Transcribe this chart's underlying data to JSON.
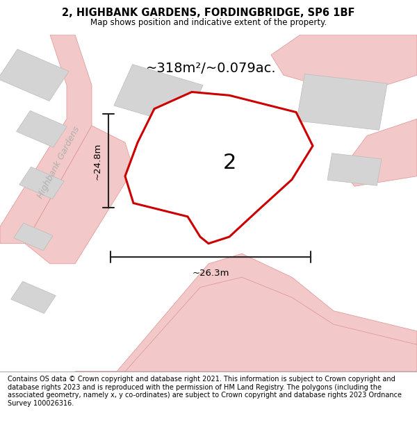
{
  "title": "2, HIGHBANK GARDENS, FORDINGBRIDGE, SP6 1BF",
  "subtitle": "Map shows position and indicative extent of the property.",
  "footer": "Contains OS data © Crown copyright and database right 2021. This information is subject to Crown copyright and database rights 2023 and is reproduced with the permission of HM Land Registry. The polygons (including the associated geometry, namely x, y co-ordinates) are subject to Crown copyright and database rights 2023 Ordnance Survey 100026316.",
  "area_label": "~318m²/~0.079ac.",
  "width_label": "~26.3m",
  "height_label": "~24.8m",
  "street_label": "Highbank Gardens",
  "plot_number": "2",
  "map_bg": "#ffffff",
  "road_color": "#f2c8c8",
  "road_edge_color": "#e09090",
  "building_fill": "#d4d4d4",
  "building_edge": "#bbbbbb",
  "plot_fill": "#ffffff",
  "plot_outline": "#cc0000",
  "dim_line_color": "#222222",
  "footer_bg": "#eeeeee",
  "title_fontsize": 10.5,
  "subtitle_fontsize": 8.5,
  "footer_fontsize": 7,
  "area_fontsize": 14,
  "plot_number_fontsize": 22,
  "street_fontsize": 9,
  "dim_fontsize": 9.5
}
